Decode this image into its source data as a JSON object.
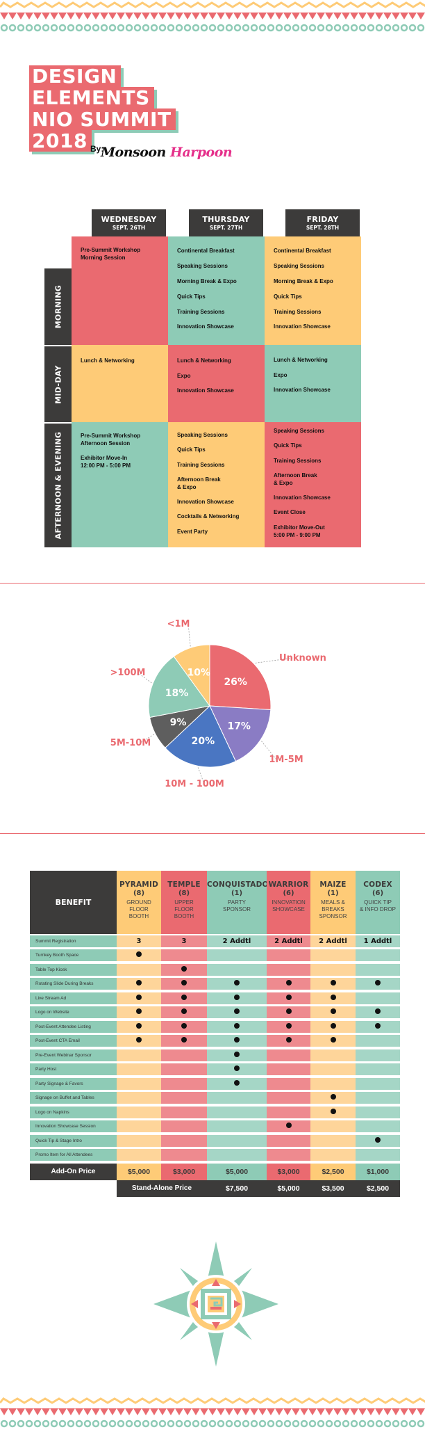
{
  "title": {
    "lines": [
      "DESIGN",
      "ELEMENTS",
      "NIO SUMMIT",
      "2018"
    ],
    "by_label": "By:",
    "signature_part1": "Monsoon",
    "signature_part2": "Harpoon"
  },
  "colors": {
    "red": "#ea6a70",
    "teal": "#8ecbb6",
    "yellow": "#fecb77",
    "dark": "#3c3b3a",
    "purple": "#8a7cc4",
    "blue": "#4a76c2",
    "gray": "#5e5e5e"
  },
  "schedule": {
    "days": [
      {
        "name": "WEDNESDAY",
        "date": "SEPT. 26TH"
      },
      {
        "name": "THURSDAY",
        "date": "SEPT. 27TH"
      },
      {
        "name": "FRIDAY",
        "date": "SEPT. 28TH"
      }
    ],
    "periods": [
      "MORNING",
      "MID-DAY",
      "AFTERNOON & EVENING"
    ],
    "cells": {
      "morning": [
        [
          "Pre-Summit Workshop\nMorning Session"
        ],
        [
          "Continental Breakfast",
          "Speaking Sessions",
          "Morning Break & Expo",
          "Quick Tips",
          "Training Sessions",
          "Innovation Showcase"
        ],
        [
          "Continental Breakfast",
          "Speaking Sessions",
          "Morning Break & Expo",
          "Quick Tips",
          "Training Sessions",
          "Innovation Showcase"
        ]
      ],
      "midday": [
        [
          "Lunch & Networking"
        ],
        [
          "Lunch & Networking",
          "Expo",
          "Innovation Showcase"
        ],
        [
          "Lunch & Networking",
          "Expo",
          "Innovation Showcase"
        ]
      ],
      "afternoon": [
        [
          "Pre-Summit Workshop\nAfternoon Session",
          "Exhibitor Move-In\n12:00 PM - 5:00 PM"
        ],
        [
          "Speaking Sessions",
          "Quick Tips",
          "Training Sessions",
          "Afternoon Break\n& Expo",
          "Innovation Showcase",
          "Cocktails & Networking",
          "Event Party"
        ],
        [
          "Speaking Sessions",
          "Quick Tips",
          "Training Sessions",
          "Afternoon Break\n& Expo",
          "Innovation Showcase",
          "Event Close",
          "Exhibitor Move-Out\n5:00 PM - 9:00 PM"
        ]
      ]
    }
  },
  "chart_data": {
    "type": "pie",
    "slices": [
      {
        "label": "Unknown",
        "value": 26,
        "display": "26%",
        "color": "#ea6a70"
      },
      {
        "label": "1M-5M",
        "value": 17,
        "display": "17%",
        "color": "#8a7cc4"
      },
      {
        "label": "10M - 100M",
        "value": 20,
        "display": "20%",
        "color": "#4a76c2"
      },
      {
        "label": "5M-10M",
        "value": 9,
        "display": "9%",
        "color": "#5e5e5e"
      },
      {
        "label": ">100M",
        "value": 18,
        "display": "18%",
        "color": "#8ecbb6"
      },
      {
        "label": "<1M",
        "value": 10,
        "display": "10%",
        "color": "#fecb77"
      }
    ]
  },
  "sponsors": {
    "benefit_header": "BENEFIT",
    "columns": [
      {
        "name": "PYRAMID",
        "count": "(8)",
        "desc": "GROUND\nFLOOR\nBOOTH",
        "color": "#fecb77",
        "light": "#fed59a"
      },
      {
        "name": "TEMPLE",
        "count": "(8)",
        "desc": "UPPER\nFLOOR\nBOOTH",
        "color": "#ea6a70",
        "light": "#ee8a8f"
      },
      {
        "name": "CONQUISTADOR",
        "count": "(1)",
        "desc": "PARTY\nSPONSOR",
        "color": "#8ecbb6",
        "light": "#a5d6c6"
      },
      {
        "name": "WARRIOR",
        "count": "(6)",
        "desc": "INNOVATION\nSHOWCASE",
        "color": "#ea6a70",
        "light": "#ee8a8f"
      },
      {
        "name": "MAIZE",
        "count": "(1)",
        "desc": "MEALS &\nBREAKS\nSPONSOR",
        "color": "#fecb77",
        "light": "#fed59a"
      },
      {
        "name": "CODEX",
        "count": "(6)",
        "desc": "QUICK TIP\n& INFO DROP",
        "color": "#8ecbb6",
        "light": "#a5d6c6"
      }
    ],
    "rows": [
      {
        "benefit": "Summit Registration",
        "values": [
          "3",
          "3",
          "2 Addtl",
          "2 Addtl",
          "2 Addtl",
          "1 Addtl"
        ]
      },
      {
        "benefit": "Turnkey Booth Space",
        "values": [
          "dot",
          "",
          "",
          "",
          "",
          ""
        ]
      },
      {
        "benefit": "Table Top Kiosk",
        "values": [
          "",
          "dot",
          "",
          "",
          "",
          ""
        ]
      },
      {
        "benefit": "Rotating Slide During Breaks",
        "values": [
          "dot",
          "dot",
          "dot",
          "dot",
          "dot",
          "dot"
        ]
      },
      {
        "benefit": "Live Stream Ad",
        "values": [
          "dot",
          "dot",
          "dot",
          "dot",
          "dot",
          ""
        ]
      },
      {
        "benefit": "Logo on Website",
        "values": [
          "dot",
          "dot",
          "dot",
          "dot",
          "dot",
          "dot"
        ]
      },
      {
        "benefit": "Post-Event Attendee Listing",
        "values": [
          "dot",
          "dot",
          "dot",
          "dot",
          "dot",
          "dot"
        ]
      },
      {
        "benefit": "Post-Event CTA Email",
        "values": [
          "dot",
          "dot",
          "dot",
          "dot",
          "dot",
          ""
        ]
      },
      {
        "benefit": "Pre-Event Webinar Sponsor",
        "values": [
          "",
          "",
          "dot",
          "",
          "",
          ""
        ]
      },
      {
        "benefit": "Party Host",
        "values": [
          "",
          "",
          "dot",
          "",
          "",
          ""
        ]
      },
      {
        "benefit": "Party Signage & Favors",
        "values": [
          "",
          "",
          "dot",
          "",
          "",
          ""
        ]
      },
      {
        "benefit": "Signage on Buffet and Tables",
        "values": [
          "",
          "",
          "",
          "",
          "dot",
          ""
        ]
      },
      {
        "benefit": "Logo on Napkins",
        "values": [
          "",
          "",
          "",
          "",
          "dot",
          ""
        ]
      },
      {
        "benefit": "Innovation Showcase Session",
        "values": [
          "",
          "",
          "",
          "dot",
          "",
          ""
        ]
      },
      {
        "benefit": "Quick Tip & Stage Intro",
        "values": [
          "",
          "",
          "",
          "",
          "",
          "dot"
        ]
      },
      {
        "benefit": "Promo Item for All Attendees",
        "values": [
          "",
          "",
          "",
          "",
          "",
          ""
        ]
      }
    ],
    "addon_label": "Add-On Price",
    "addon_prices": [
      "$5,000",
      "$3,000",
      "$5,000",
      "$3,000",
      "$2,500",
      "$1,000"
    ],
    "standalone_label": "Stand-Alone Price",
    "standalone_prices": [
      "$7,500",
      "$5,000",
      "$3,500",
      "$2,500"
    ]
  }
}
